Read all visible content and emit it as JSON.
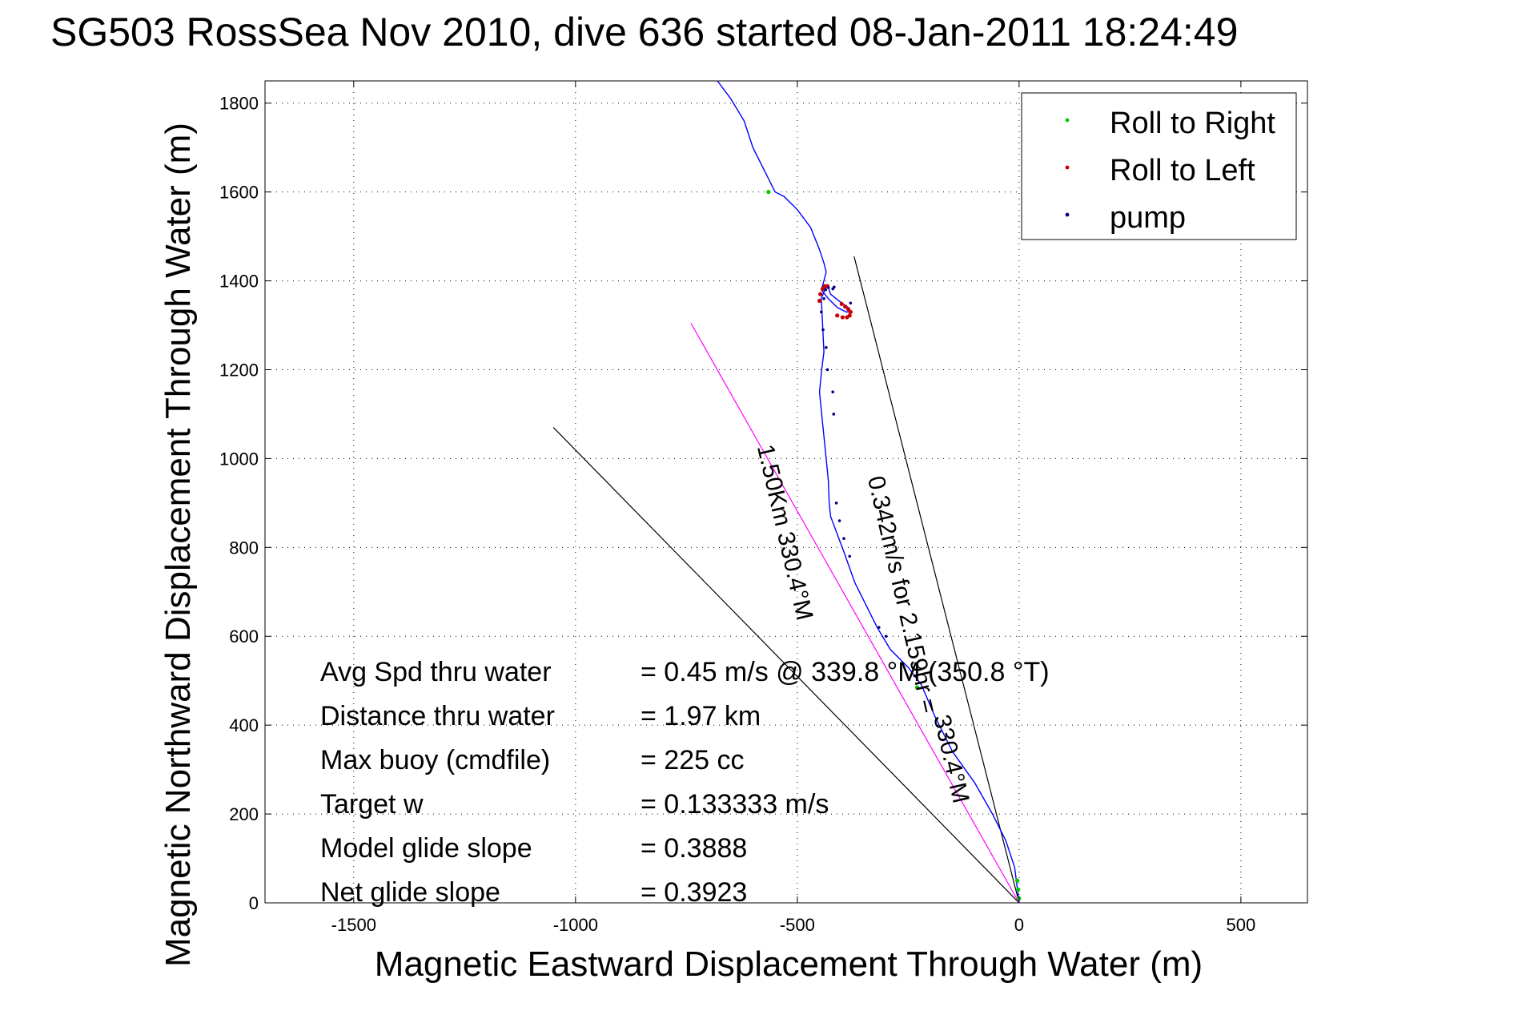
{
  "chart_data": {
    "type": "line",
    "title": "SG503 RossSea Nov 2010, dive 636 started 08-Jan-2011 18:24:49",
    "xlabel": "Magnetic Eastward Displacement Through Water (m)",
    "ylabel": "Magnetic Northward Displacement Through Water (m)",
    "xlim": [
      -1700,
      650
    ],
    "ylim": [
      0,
      1850
    ],
    "xticks": [
      -1500,
      -1000,
      -500,
      0,
      500
    ],
    "yticks": [
      0,
      200,
      400,
      600,
      800,
      1000,
      1200,
      1400,
      1600,
      1800
    ],
    "grid": true,
    "legend_position": "top-right",
    "legend": [
      {
        "label": "Roll to Right",
        "color": "#00cc00"
      },
      {
        "label": "Roll to Left",
        "color": "#cc0000"
      },
      {
        "label": "pump",
        "color": "#000080"
      }
    ],
    "track": {
      "color": "#0000ff",
      "x": [
        0,
        -10,
        -30,
        -60,
        -100,
        -150,
        -190,
        -220,
        -250,
        -290,
        -320,
        -370,
        -395,
        -410,
        -425,
        -428,
        -430,
        -435,
        -440,
        -445,
        -450,
        -445,
        -440,
        -442,
        -444,
        -446,
        -436,
        -430,
        -425,
        -400,
        -385,
        -380,
        -390,
        -410,
        -430,
        -446,
        -440,
        -435,
        -440,
        -450,
        -470,
        -500,
        -530,
        -550,
        -560,
        -580,
        -600,
        -620,
        -650,
        -680
      ],
      "y": [
        0,
        80,
        140,
        200,
        270,
        340,
        420,
        490,
        530,
        570,
        620,
        720,
        790,
        830,
        870,
        900,
        950,
        1000,
        1050,
        1100,
        1150,
        1200,
        1240,
        1280,
        1320,
        1360,
        1385,
        1385,
        1370,
        1350,
        1340,
        1330,
        1330,
        1340,
        1360,
        1380,
        1400,
        1420,
        1440,
        1470,
        1520,
        1560,
        1590,
        1600,
        1620,
        1660,
        1700,
        1760,
        1810,
        1850
      ]
    },
    "roll_right_points": {
      "x": [
        0,
        -2,
        -4,
        -230,
        -565
      ],
      "y": [
        10,
        30,
        50,
        485,
        1600
      ]
    },
    "roll_left_points": {
      "x": [
        -450,
        -448,
        -443,
        -438,
        -432,
        -400,
        -392,
        -385,
        -380,
        -382,
        -388,
        -398,
        -410
      ],
      "y": [
        1355,
        1370,
        1382,
        1388,
        1388,
        1348,
        1342,
        1336,
        1330,
        1322,
        1318,
        1318,
        1322
      ]
    },
    "pump_points": {
      "x": [
        -430,
        -436,
        -440,
        -446,
        -442,
        -435,
        -432,
        -420,
        -418,
        -412,
        -405,
        -395,
        -382,
        -316,
        -300,
        -420,
        -417,
        -380
      ],
      "y": [
        1385,
        1380,
        1360,
        1330,
        1290,
        1250,
        1200,
        1150,
        1100,
        900,
        860,
        820,
        780,
        620,
        600,
        1382,
        1386,
        1350
      ]
    },
    "reference_lines": [
      {
        "name": "line_a",
        "color": "#000000",
        "x": [
          0,
          -1050
        ],
        "y": [
          0,
          1070
        ]
      },
      {
        "name": "line_b",
        "color": "#000000",
        "x": [
          0,
          -372
        ],
        "y": [
          0,
          1455
        ]
      },
      {
        "name": "line_c",
        "color": "#ff00ff",
        "x": [
          0,
          -740
        ],
        "y": [
          0,
          1305
        ]
      }
    ],
    "annotations": [
      {
        "text": "1.50Km 330.4°M",
        "x": -545,
        "y": 830,
        "angle": 77
      },
      {
        "text": "0.342m/s for 2.159hr =",
        "x": -280,
        "y": 690,
        "angle": 77
      },
      {
        "text": "330.4°M",
        "x": -170,
        "y": 320,
        "angle": 77
      }
    ],
    "stats": [
      {
        "label": "Avg Spd thru water",
        "value": "=  0.45 m/s @ 339.8 °M (350.8 °T)"
      },
      {
        "label": "Distance thru water",
        "value": "=  1.97 km"
      },
      {
        "label": "Max buoy (cmdfile)",
        "value": "= 225 cc"
      },
      {
        "label": "Target w",
        "value": "= 0.133333 m/s"
      },
      {
        "label": "Model glide slope",
        "value": "= 0.3888"
      },
      {
        "label": "Net glide slope",
        "value": "= 0.3923"
      }
    ]
  }
}
